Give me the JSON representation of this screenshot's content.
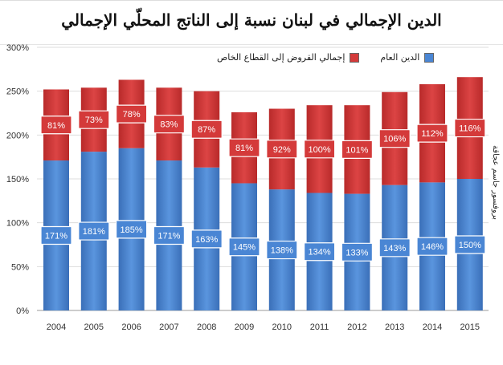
{
  "chart_data": {
    "type": "bar",
    "stacked": true,
    "title": "الدين الإجمالي في لبنان نسبة إلى الناتج المحلّي الإجمالي",
    "categories": [
      "2004",
      "2005",
      "2006",
      "2007",
      "2008",
      "2009",
      "2010",
      "2011",
      "2012",
      "2013",
      "2014",
      "2015"
    ],
    "series": [
      {
        "name": "الدين العام",
        "color": "#4a86d4",
        "values": [
          171,
          181,
          185,
          171,
          163,
          145,
          138,
          134,
          133,
          143,
          146,
          150
        ]
      },
      {
        "name": "إجمالي القروض إلى القطاع الخاص",
        "color": "#d43a3a",
        "values": [
          81,
          73,
          78,
          83,
          87,
          81,
          92,
          100,
          101,
          106,
          112,
          116
        ]
      }
    ],
    "yticks": [
      "0%",
      "50%",
      "100%",
      "150%",
      "200%",
      "250%",
      "300%"
    ],
    "ylim": [
      0,
      300
    ],
    "legend": "top",
    "grid": true
  },
  "author": "بروفسور جاسم عجاقة"
}
